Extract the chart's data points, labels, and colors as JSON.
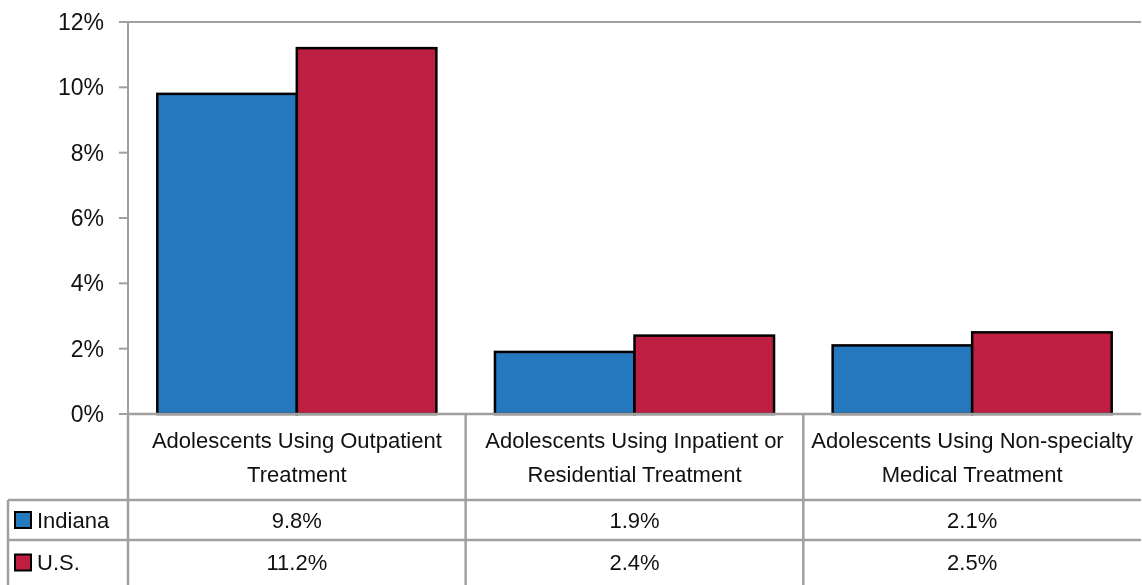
{
  "chart_data": {
    "type": "bar",
    "categories": [
      "Adolescents Using Outpatient Treatment",
      "Adolescents Using Inpatient or Residential Treatment",
      "Adolescents Using Non-specialty Medical Treatment"
    ],
    "series": [
      {
        "name": "Indiana",
        "color": "#2577be",
        "values": [
          9.8,
          1.9,
          2.1
        ],
        "value_labels": [
          "9.8%",
          "1.9%",
          "2.1%"
        ]
      },
      {
        "name": "U.S.",
        "color": "#be1e41",
        "values": [
          11.2,
          2.4,
          2.5
        ],
        "value_labels": [
          "11.2%",
          "2.4%",
          "2.5%"
        ]
      }
    ],
    "ylim": [
      0,
      12
    ],
    "yticks": [
      {
        "value": 0,
        "label": "0%"
      },
      {
        "value": 2,
        "label": "2%"
      },
      {
        "value": 4,
        "label": "4%"
      },
      {
        "value": 6,
        "label": "6%"
      },
      {
        "value": 8,
        "label": "8%"
      },
      {
        "value": 10,
        "label": "10%"
      },
      {
        "value": 12,
        "label": "12%"
      }
    ],
    "grid": false,
    "legend": "bottom left"
  }
}
